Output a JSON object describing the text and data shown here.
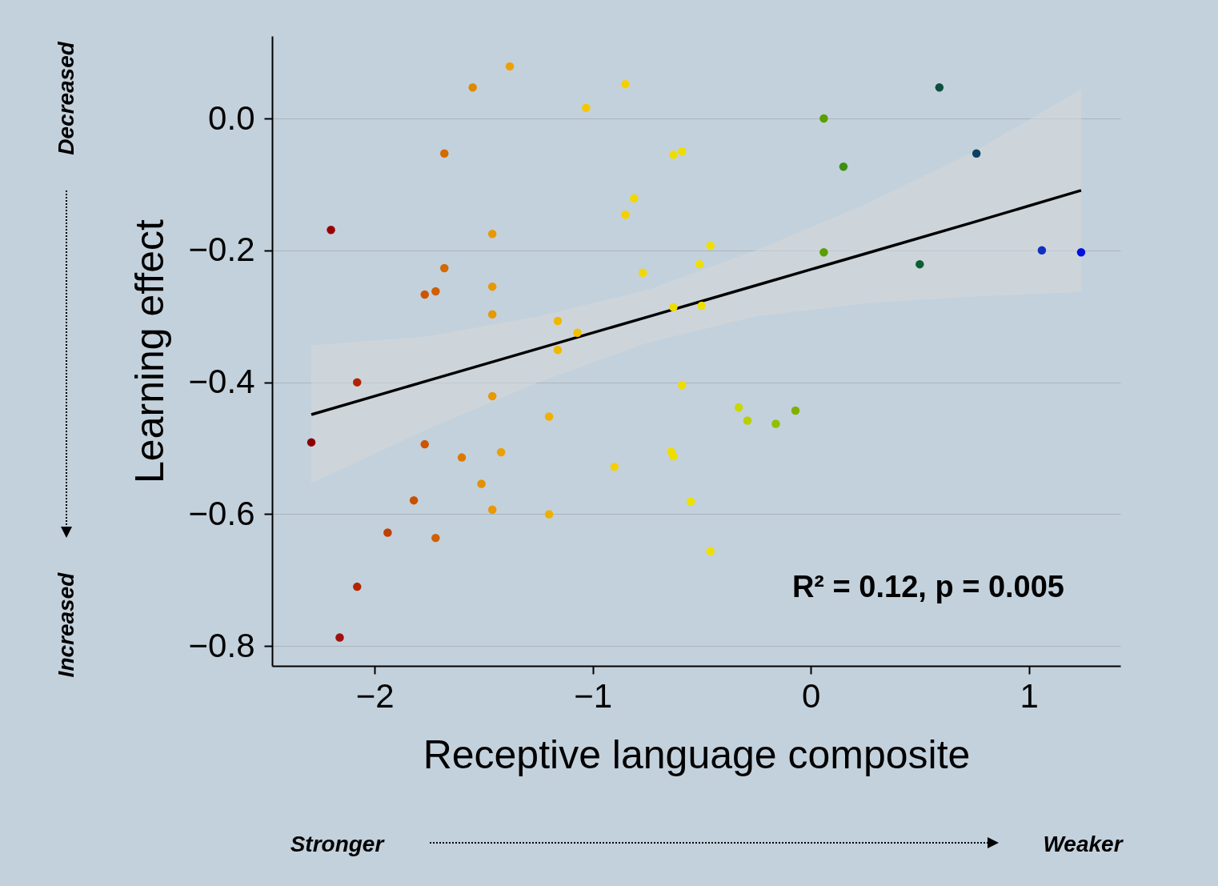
{
  "chart_data": {
    "type": "scatter",
    "xlabel": "Receptive language composite",
    "ylabel": "Learning effect",
    "xlim": [
      -2.47,
      1.42
    ],
    "ylim": [
      -0.83,
      0.125
    ],
    "xticks": [
      {
        "value": -2,
        "label": "−2"
      },
      {
        "value": -1,
        "label": "−1"
      },
      0,
      1
    ],
    "yticks": [
      {
        "value": -0.8,
        "label": "−0.8"
      },
      {
        "value": -0.6,
        "label": "−0.6"
      },
      {
        "value": -0.4,
        "label": "−0.4"
      },
      {
        "value": -0.2,
        "label": "−0.2"
      },
      {
        "value": 0,
        "label": "0.0"
      }
    ],
    "grid": "y",
    "annotations": [
      "R² = 0.12, p = 0.005",
      "Stronger",
      "Weaker",
      "Decreased",
      "Increased"
    ],
    "series": [
      {
        "type": "line",
        "color": "#000000",
        "x": [
          -2.29,
          -1.75,
          -1.25,
          -0.75,
          -0.25,
          0.25,
          0.75,
          1.24
        ],
        "values": [
          -0.449,
          -0.397,
          -0.349,
          -0.301,
          -0.253,
          -0.205,
          -0.157,
          -0.109
        ],
        "lower": [
          -0.553,
          -0.47,
          -0.4,
          -0.34,
          -0.3,
          -0.28,
          -0.27,
          -0.263
        ],
        "upper": [
          -0.344,
          -0.33,
          -0.3,
          -0.26,
          -0.2,
          -0.13,
          -0.05,
          0.044
        ]
      },
      {
        "marker": "circle",
        "x": [
          -2.29,
          -2.2,
          -2.16,
          -2.08,
          -2.08,
          -1.94,
          -1.82,
          -1.77,
          -1.77,
          -1.72,
          -1.72,
          -1.68,
          -1.68,
          -1.6,
          -1.55,
          -1.51,
          -1.46,
          -1.46,
          -1.46,
          -1.46,
          -1.46,
          -1.42,
          -1.38,
          -1.2,
          -1.2,
          -1.16,
          -1.16,
          -1.07,
          -1.03,
          -0.9,
          -0.85,
          -0.85,
          -0.81,
          -0.77,
          -0.64,
          -0.63,
          -0.63,
          -0.63,
          -0.59,
          -0.59,
          -0.55,
          -0.51,
          -0.5,
          -0.46,
          -0.46,
          -0.33,
          -0.29,
          -0.16,
          -0.07,
          0.06,
          0.06,
          0.15,
          0.5,
          0.59,
          0.76,
          1.06,
          1.24
        ],
        "values": [
          -0.491,
          -0.169,
          -0.787,
          -0.4,
          -0.71,
          -0.628,
          -0.579,
          -0.267,
          -0.494,
          -0.262,
          -0.636,
          -0.053,
          -0.227,
          -0.514,
          0.047,
          -0.554,
          -0.175,
          -0.255,
          -0.297,
          -0.421,
          -0.593,
          -0.506,
          0.079,
          -0.452,
          -0.6,
          -0.307,
          -0.351,
          -0.325,
          0.016,
          -0.528,
          0.052,
          -0.146,
          -0.121,
          -0.234,
          -0.505,
          -0.512,
          -0.055,
          -0.286,
          -0.05,
          -0.404,
          -0.581,
          -0.221,
          -0.284,
          -0.193,
          -0.656,
          -0.438,
          -0.458,
          -0.463,
          -0.443,
          0,
          -0.203,
          -0.073,
          -0.221,
          0.047,
          -0.053,
          -0.2,
          -0.203
        ],
        "colors": [
          "#8b0000",
          "#990000",
          "#a01010",
          "#b22200",
          "#b32500",
          "#c04000",
          "#c85000",
          "#cc5500",
          "#cc5500",
          "#d06000",
          "#d06000",
          "#d46a00",
          "#d46a00",
          "#dc7a00",
          "#e08800",
          "#e49000",
          "#e89800",
          "#e89800",
          "#e89800",
          "#e89800",
          "#e89800",
          "#eaa000",
          "#eda000",
          "#f0b000",
          "#f0b000",
          "#f0b800",
          "#f0b800",
          "#f2c000",
          "#f4c800",
          "#f4d000",
          "#f4d000",
          "#f4d000",
          "#f2d800",
          "#f2d800",
          "#eedd00",
          "#eedd00",
          "#eedd00",
          "#eedd00",
          "#eedd00",
          "#eedd00",
          "#eee000",
          "#eee000",
          "#eee000",
          "#eee000",
          "#eee000",
          "#c8d800",
          "#b8d000",
          "#90c000",
          "#80b000",
          "#5a9e00",
          "#5a9e00",
          "#3f8f10",
          "#0a6030",
          "#0e5040",
          "#0e4060",
          "#1030c0",
          "#0010e0"
        ]
      }
    ]
  }
}
